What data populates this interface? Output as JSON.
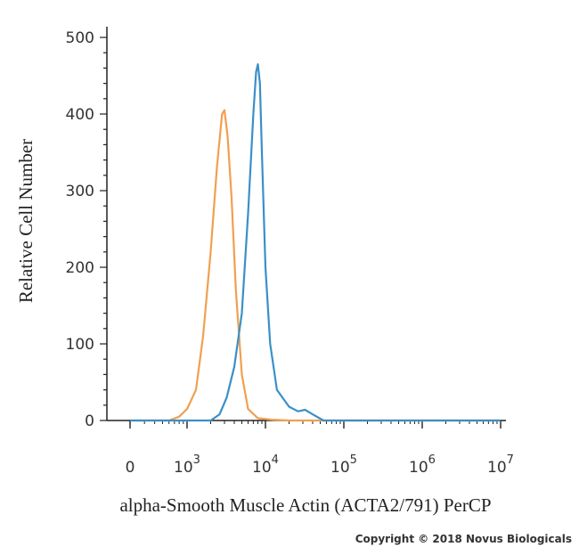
{
  "chart_data": {
    "type": "line",
    "title": "",
    "xlabel": "alpha-Smooth Muscle Actin (ACTA2/791) PerCP",
    "ylabel": "Relative Cell Number",
    "x_scale": "biexponential",
    "ylim": [
      0,
      500
    ],
    "y_ticks": [
      "0",
      "100",
      "200",
      "300",
      "400",
      "500"
    ],
    "x_ticks": [
      {
        "base": "0",
        "exp": ""
      },
      {
        "base": "10",
        "exp": "3"
      },
      {
        "base": "10",
        "exp": "4"
      },
      {
        "base": "10",
        "exp": "5"
      },
      {
        "base": "10",
        "exp": "6"
      },
      {
        "base": "10",
        "exp": "7"
      }
    ],
    "grid": false,
    "series": [
      {
        "color": "#f0a050",
        "x": [
          0,
          600,
          800,
          1000,
          1300,
          1600,
          2000,
          2400,
          2800,
          3000,
          3300,
          3700,
          4200,
          5000,
          6000,
          8000,
          12000,
          20000,
          50000,
          10000000
        ],
        "y": [
          0,
          0,
          5,
          15,
          40,
          110,
          220,
          330,
          400,
          405,
          370,
          290,
          170,
          60,
          15,
          3,
          1,
          0,
          0,
          0
        ]
      },
      {
        "color": "#3b8fc8",
        "x": [
          0,
          1000,
          2000,
          2600,
          3200,
          4000,
          5000,
          6000,
          7000,
          7600,
          8000,
          8500,
          9000,
          10000,
          11500,
          14000,
          20000,
          26000,
          32000,
          40000,
          55000,
          10000000
        ],
        "y": [
          0,
          0,
          0,
          8,
          30,
          70,
          140,
          270,
          400,
          455,
          465,
          440,
          350,
          200,
          100,
          40,
          18,
          12,
          14,
          8,
          0,
          0
        ]
      }
    ]
  },
  "copyright": "Copyright © 2018 Novus Biologicals"
}
